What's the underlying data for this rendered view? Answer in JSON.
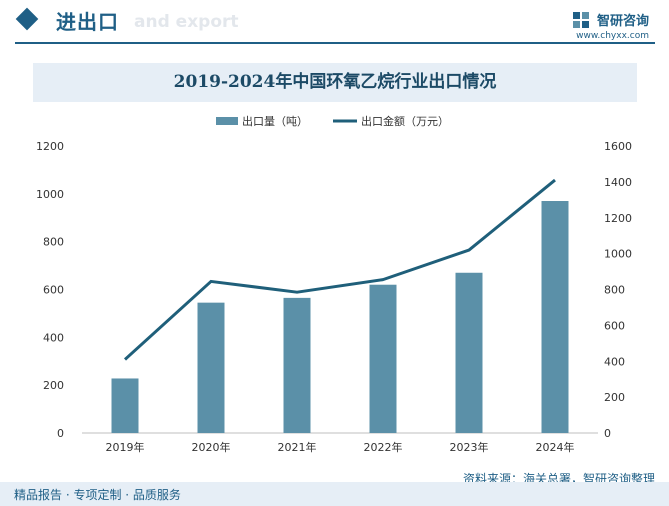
{
  "header": {
    "title": "进出口",
    "subtitle": "and export",
    "brand_name": "智研咨询",
    "brand_url": "www.chyxx.com"
  },
  "chart_data": {
    "type": "bar",
    "title": "2019-2024年中国环氧乙烷行业出口情况",
    "categories": [
      "2019年",
      "2020年",
      "2021年",
      "2022年",
      "2023年",
      "2024年"
    ],
    "series": [
      {
        "name": "出口量（吨）",
        "type": "bar",
        "axis": "left",
        "values": [
          228,
          545,
          565,
          620,
          670,
          970
        ],
        "color": "#5b90a8"
      },
      {
        "name": "出口金额（万元）",
        "type": "line",
        "axis": "right",
        "values": [
          410,
          845,
          785,
          855,
          1020,
          1410
        ],
        "color": "#1f5f7a"
      }
    ],
    "y_left": {
      "ylim": [
        0,
        1200
      ],
      "ticks": [
        "0",
        "200",
        "400",
        "600",
        "800",
        "1000",
        "1200"
      ]
    },
    "y_right": {
      "ylim": [
        0,
        1600
      ],
      "ticks": [
        "0",
        "200",
        "400",
        "600",
        "800",
        "1000",
        "1200",
        "1400",
        "1600"
      ]
    },
    "legend_position": "top-center",
    "grid": false
  },
  "footer": {
    "left_text": "精品报告 · 专项定制 · 品质服务",
    "source_text": "资料来源：海关总署，智研咨询整理"
  }
}
